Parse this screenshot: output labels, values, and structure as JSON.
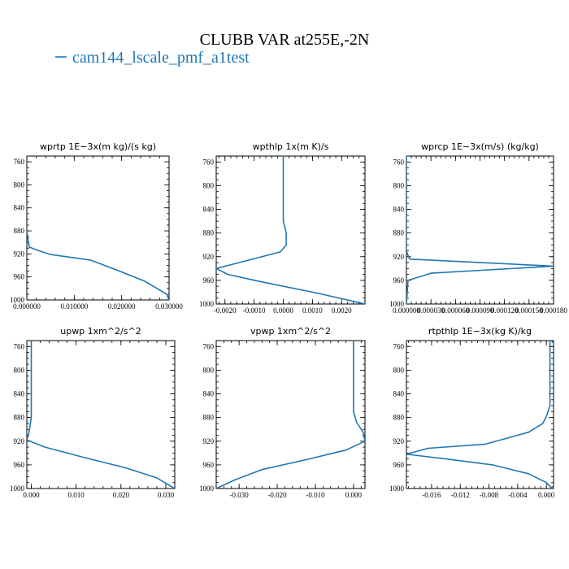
{
  "figure": {
    "title": "CLUBB VAR at255E,-2N",
    "legend": {
      "label": "cam144_lscale_pmf_a1test",
      "color": "#1f77b4"
    }
  },
  "chart_data": [
    {
      "type": "line",
      "title": "wprtp   1E−3x(m kg)/(s kg)",
      "ylim": [
        1000,
        750
      ],
      "yticks": [
        760,
        800,
        840,
        880,
        920,
        960,
        1000
      ],
      "xlim": [
        0,
        0.03
      ],
      "xticks": [
        0,
        0.01,
        0.02,
        0.03
      ],
      "xtick_labels": [
        "0.000000",
        "0.010000",
        "0.020000",
        "0.030000"
      ],
      "series": [
        {
          "color": "#1f77b4",
          "x": [
            0,
            0,
            0.0005,
            0.002,
            0.005,
            0.0135,
            0.019,
            0.025,
            0.0295,
            0.03
          ],
          "y": [
            750,
            880,
            908,
            913,
            921,
            931,
            948,
            968,
            990,
            1000
          ]
        }
      ]
    },
    {
      "type": "line",
      "title": "wpthlp   1x(m K)/s",
      "ylim": [
        1000,
        750
      ],
      "yticks": [
        760,
        800,
        840,
        880,
        920,
        960,
        1000
      ],
      "xlim": [
        -0.0023,
        0.0028
      ],
      "xticks": [
        -0.002,
        -0.001,
        0,
        0.001,
        0.002
      ],
      "xtick_labels": [
        "-0.0020",
        "-0.0010",
        "0.0000",
        "0.0010",
        "0.0020"
      ],
      "series": [
        {
          "color": "#1f77b4",
          "x": [
            0,
            0,
            0.0001,
            0.0001,
            -0.0001,
            -0.0012,
            -0.0023,
            -0.0019,
            -0.0008,
            0.0012,
            0.0028
          ],
          "y": [
            750,
            860,
            880,
            900,
            912,
            926,
            940,
            950,
            962,
            982,
            1000
          ]
        }
      ]
    },
    {
      "type": "line",
      "title": "wprcp   1E−3x(m/s) (kg/kg)",
      "ylim": [
        1000,
        750
      ],
      "yticks": [
        760,
        800,
        840,
        880,
        920,
        960,
        1000
      ],
      "xlim": [
        0,
        0.00018
      ],
      "xticks": [
        0,
        3e-05,
        6e-05,
        9e-05,
        0.00012,
        0.00015,
        0.00018
      ],
      "xtick_labels": [
        "0.000000",
        "0.000030",
        "0.000060",
        "0.000090",
        "0.000120",
        "0.000150",
        "0.000180"
      ],
      "series": [
        {
          "color": "#1f77b4",
          "x": [
            0,
            0,
            2e-06,
            4e-06,
            0.00018,
            3e-05,
            2e-06,
            0
          ],
          "y": [
            750,
            910,
            918,
            924,
            936,
            948,
            960,
            1000
          ]
        }
      ]
    },
    {
      "type": "line",
      "title": "upwp   1xm^2/s^2",
      "ylim": [
        1000,
        750
      ],
      "yticks": [
        760,
        800,
        840,
        880,
        920,
        960,
        1000
      ],
      "xlim": [
        -0.001,
        0.032
      ],
      "xticks": [
        0,
        0.01,
        0.02,
        0.03
      ],
      "xtick_labels": [
        "0.000",
        "0.010",
        "0.020",
        "0.030"
      ],
      "series": [
        {
          "color": "#1f77b4",
          "x": [
            0,
            0,
            -0.0005,
            -0.001,
            0.003,
            0.012,
            0.021,
            0.028,
            0.032
          ],
          "y": [
            750,
            880,
            905,
            918,
            930,
            948,
            965,
            982,
            1000
          ]
        }
      ]
    },
    {
      "type": "line",
      "title": "vpwp   1xm^2/s^2",
      "ylim": [
        1000,
        750
      ],
      "yticks": [
        760,
        800,
        840,
        880,
        920,
        960,
        1000
      ],
      "xlim": [
        -0.036,
        0.003
      ],
      "xticks": [
        -0.03,
        -0.02,
        -0.01,
        0
      ],
      "xtick_labels": [
        "-0.030",
        "-0.020",
        "-0.010",
        "0.000"
      ],
      "series": [
        {
          "color": "#1f77b4",
          "x": [
            0,
            0,
            0.0008,
            0.0025,
            0.003,
            -0.002,
            -0.013,
            -0.024,
            -0.031,
            -0.036
          ],
          "y": [
            750,
            870,
            888,
            905,
            920,
            935,
            952,
            968,
            985,
            1000
          ]
        }
      ]
    },
    {
      "type": "line",
      "title": "rtpthlp   1E−3x(kg K)/kg",
      "ylim": [
        1000,
        750
      ],
      "yticks": [
        760,
        800,
        840,
        880,
        920,
        960,
        1000
      ],
      "xlim": [
        -0.0195,
        0.001
      ],
      "xticks": [
        -0.016,
        -0.012,
        -0.008,
        -0.004,
        0
      ],
      "xtick_labels": [
        "-0.016",
        "-0.012",
        "-0.008",
        "-0.004",
        "0.000"
      ],
      "series": [
        {
          "color": "#1f77b4",
          "x": [
            0.0005,
            0.0005,
            0,
            -0.0005,
            -0.0025,
            -0.0085,
            -0.0165,
            -0.0195,
            -0.014,
            -0.0075,
            -0.0025,
            0,
            0.0008
          ],
          "y": [
            750,
            860,
            878,
            890,
            905,
            925,
            932,
            942,
            950,
            960,
            975,
            990,
            1000
          ]
        }
      ]
    }
  ]
}
